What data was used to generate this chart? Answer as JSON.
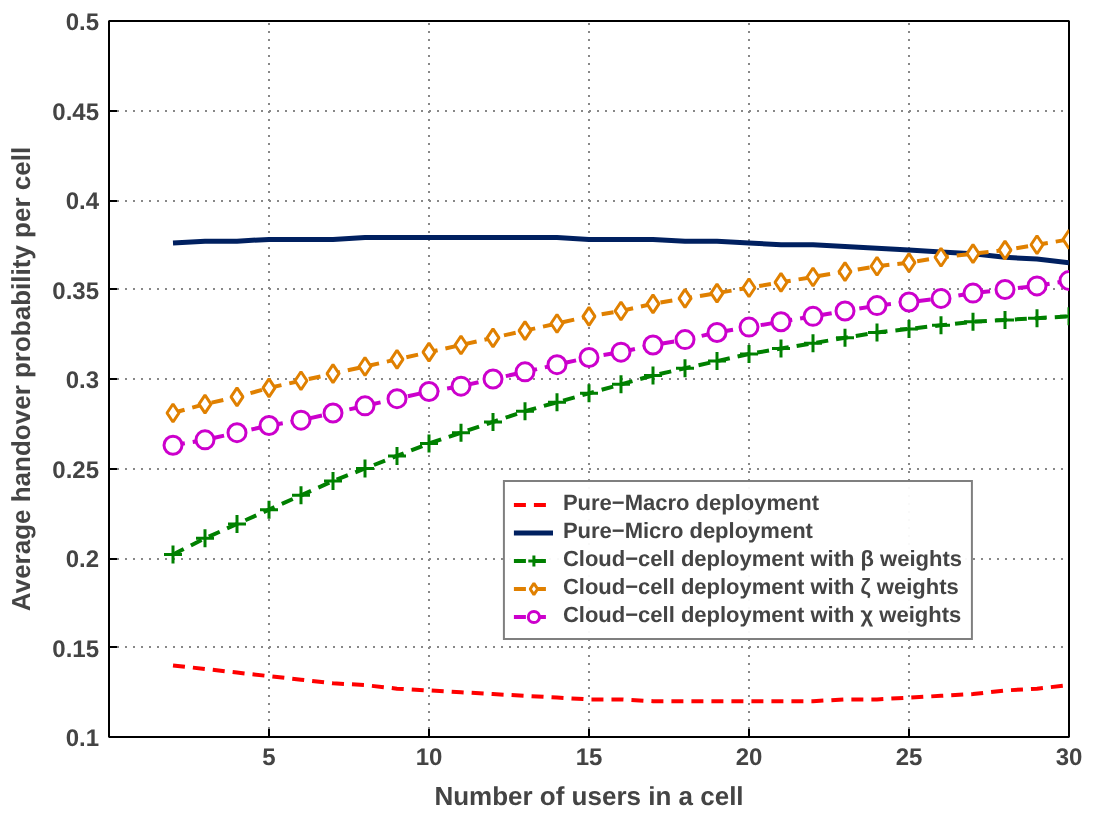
{
  "chart_data": {
    "type": "line",
    "xlabel": "Number of users in a cell",
    "ylabel": "Average handover probability per cell",
    "x": [
      2,
      3,
      4,
      5,
      6,
      7,
      8,
      9,
      10,
      11,
      12,
      13,
      14,
      15,
      16,
      17,
      18,
      19,
      20,
      21,
      22,
      23,
      24,
      25,
      26,
      27,
      28,
      29,
      30
    ],
    "xlim": [
      0,
      30
    ],
    "xticks": [
      5,
      10,
      15,
      20,
      25,
      30
    ],
    "ylim": [
      0.1,
      0.5
    ],
    "yticks": [
      0.1,
      0.15,
      0.2,
      0.25,
      0.3,
      0.35,
      0.4,
      0.45,
      0.5
    ],
    "grid": true,
    "legend": "bottom right",
    "series": [
      {
        "name": "Pure−Macro deployment",
        "color": "#ff0000",
        "line_style": "dashed",
        "marker": "none",
        "values": [
          0.14,
          0.138,
          0.136,
          0.134,
          0.132,
          0.13,
          0.129,
          0.127,
          0.126,
          0.125,
          0.124,
          0.123,
          0.122,
          0.121,
          0.121,
          0.12,
          0.12,
          0.12,
          0.12,
          0.12,
          0.12,
          0.121,
          0.121,
          0.122,
          0.123,
          0.124,
          0.126,
          0.127,
          0.129
        ]
      },
      {
        "name": "Pure−Micro deployment",
        "color": "#002060",
        "line_style": "solid",
        "marker": "none",
        "values": [
          0.376,
          0.377,
          0.377,
          0.378,
          0.378,
          0.378,
          0.379,
          0.379,
          0.379,
          0.379,
          0.379,
          0.379,
          0.379,
          0.378,
          0.378,
          0.378,
          0.377,
          0.377,
          0.376,
          0.375,
          0.375,
          0.374,
          0.373,
          0.372,
          0.371,
          0.37,
          0.368,
          0.367,
          0.365
        ]
      },
      {
        "name": "Cloud−cell deployment with β weights",
        "color": "#008000",
        "line_style": "dashed",
        "marker": "cross",
        "values": [
          0.202,
          0.211,
          0.219,
          0.227,
          0.235,
          0.243,
          0.25,
          0.257,
          0.264,
          0.27,
          0.276,
          0.282,
          0.287,
          0.292,
          0.297,
          0.302,
          0.306,
          0.31,
          0.314,
          0.317,
          0.32,
          0.323,
          0.326,
          0.328,
          0.33,
          0.332,
          0.333,
          0.334,
          0.335
        ]
      },
      {
        "name": "Cloud−cell deployment with ζ weights",
        "color": "#e08000",
        "line_style": "dashed",
        "marker": "diamond",
        "values": [
          0.281,
          0.286,
          0.29,
          0.295,
          0.299,
          0.303,
          0.307,
          0.311,
          0.315,
          0.319,
          0.323,
          0.327,
          0.331,
          0.335,
          0.338,
          0.342,
          0.345,
          0.348,
          0.351,
          0.354,
          0.357,
          0.36,
          0.363,
          0.365,
          0.368,
          0.37,
          0.372,
          0.375,
          0.378
        ]
      },
      {
        "name": "Cloud−cell deployment with χ weights",
        "color": "#cc00cc",
        "line_style": "dashed",
        "marker": "circle",
        "values": [
          0.263,
          0.266,
          0.27,
          0.274,
          0.277,
          0.281,
          0.285,
          0.289,
          0.293,
          0.296,
          0.3,
          0.304,
          0.308,
          0.312,
          0.315,
          0.319,
          0.322,
          0.326,
          0.329,
          0.332,
          0.335,
          0.338,
          0.341,
          0.343,
          0.345,
          0.348,
          0.35,
          0.352,
          0.355
        ]
      }
    ]
  }
}
